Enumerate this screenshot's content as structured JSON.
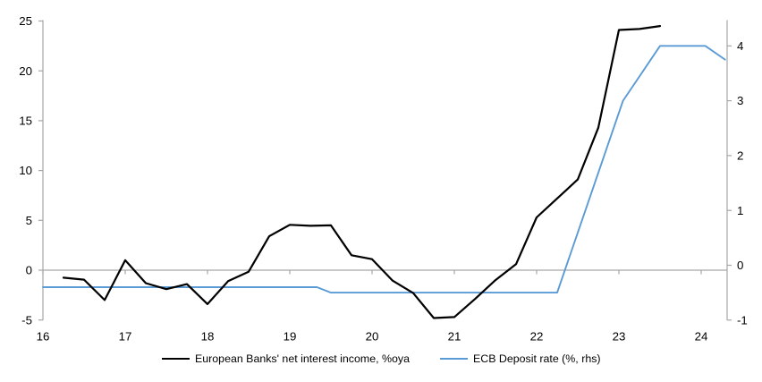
{
  "chart_data": {
    "type": "line",
    "title": "",
    "x_axis": {
      "labels": [
        "16",
        "17",
        "18",
        "19",
        "20",
        "21",
        "22",
        "23",
        "24"
      ],
      "tick_years": [
        16,
        17,
        18,
        19,
        20,
        21,
        22,
        23,
        24
      ],
      "range": [
        16,
        24.31
      ]
    },
    "left_axis": {
      "ticks": [
        25,
        20,
        15,
        10,
        5,
        0,
        -5
      ],
      "range": [
        -5,
        25.1
      ],
      "label": "European Banks' net interest income, %oya"
    },
    "right_axis": {
      "ticks": [
        4,
        3,
        2,
        1,
        0,
        -1
      ],
      "range": [
        -1,
        4.46
      ],
      "label": "ECB Deposit rate (%, rhs)"
    },
    "zero_gridline": true,
    "legend_position": "bottom",
    "series": [
      {
        "id": "net-interest-income",
        "name": "European Banks' net interest income, %oya",
        "axis": "left",
        "color": "#000000",
        "stroke_width": 2.2,
        "x": [
          16.25,
          16.5,
          16.75,
          17.0,
          17.25,
          17.5,
          17.75,
          18.0,
          18.25,
          18.5,
          18.75,
          19.0,
          19.25,
          19.5,
          19.75,
          20.0,
          20.25,
          20.5,
          20.75,
          21.0,
          21.25,
          21.5,
          21.75,
          22.0,
          22.25,
          22.5,
          22.75,
          23.0,
          23.25,
          23.5
        ],
        "values": [
          -0.75,
          -0.95,
          -3.0,
          1.0,
          -1.3,
          -1.9,
          -1.4,
          -3.4,
          -1.1,
          -0.15,
          3.4,
          4.55,
          4.45,
          4.5,
          1.5,
          1.1,
          -1.05,
          -2.3,
          -4.8,
          -4.7,
          -2.9,
          -1.0,
          0.6,
          5.3,
          7.2,
          9.1,
          14.3,
          24.1,
          24.2,
          24.5
        ]
      },
      {
        "id": "ecb-deposit-rate",
        "name": "ECB Deposit rate (%, rhs)",
        "axis": "right",
        "color": "#5B9BD5",
        "stroke_width": 1.9,
        "x": [
          16.0,
          19.33,
          19.5,
          22.25,
          23.05,
          23.5,
          24.05,
          24.29
        ],
        "values": [
          -0.4,
          -0.4,
          -0.5,
          -0.5,
          3.0,
          4.0,
          4.0,
          3.75
        ]
      }
    ]
  },
  "legend": {
    "items": [
      {
        "label": "European Banks' net interest income, %oya",
        "color": "#000000"
      },
      {
        "label": "ECB Deposit rate (%, rhs)",
        "color": "#5B9BD5"
      }
    ]
  },
  "colors": {
    "axis": "#A6A6A6",
    "zero_line": "#A6A6A6",
    "text": "#000000",
    "background": "#FFFFFF"
  }
}
